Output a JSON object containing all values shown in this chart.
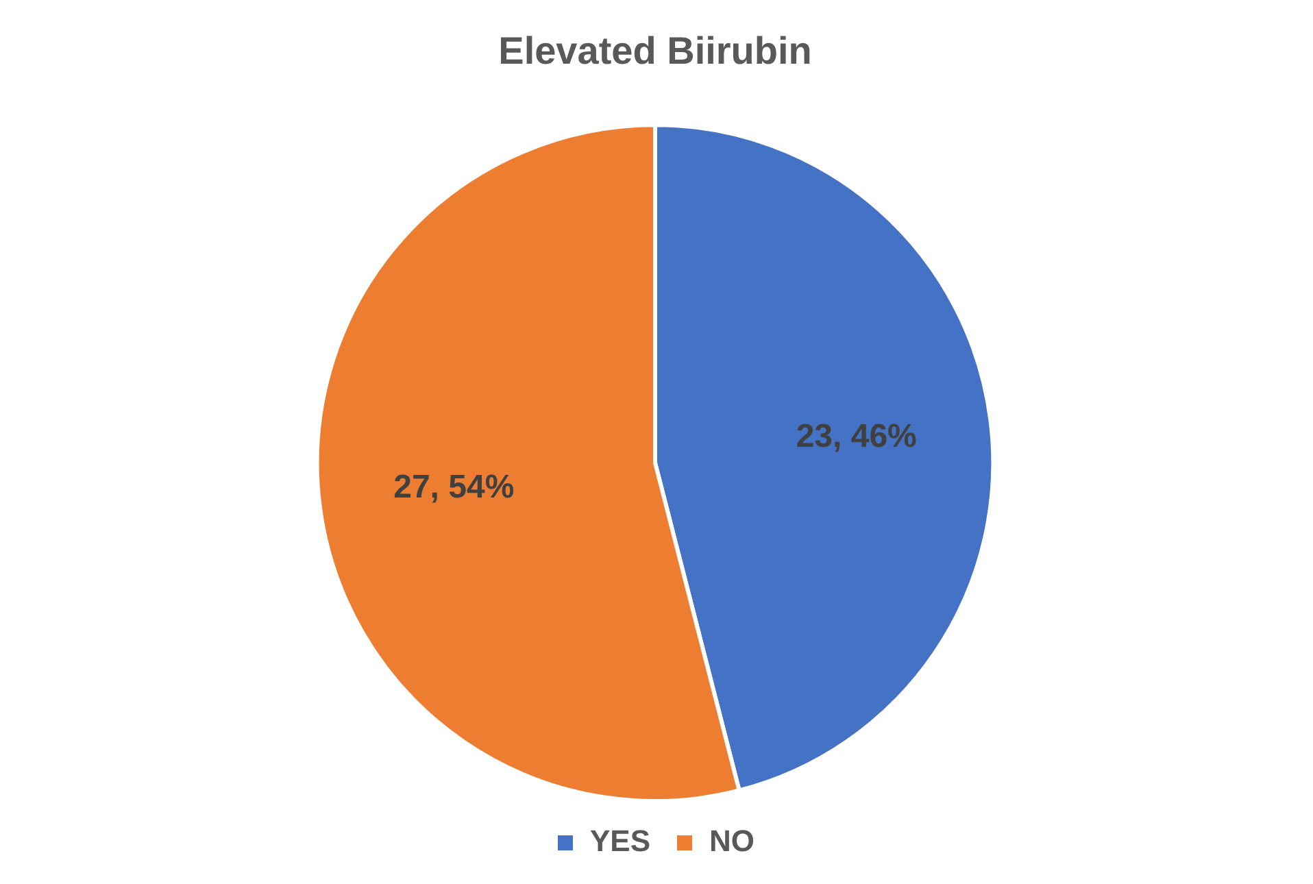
{
  "chart_data": {
    "type": "pie",
    "title": "Elevated Biirubin",
    "categories": [
      "YES",
      "NO"
    ],
    "values": [
      23,
      27
    ],
    "colors": [
      "#4472c4",
      "#ed7d31"
    ],
    "value_labels": [
      "23, 46%",
      "27, 54%"
    ],
    "legend": "bottom"
  }
}
